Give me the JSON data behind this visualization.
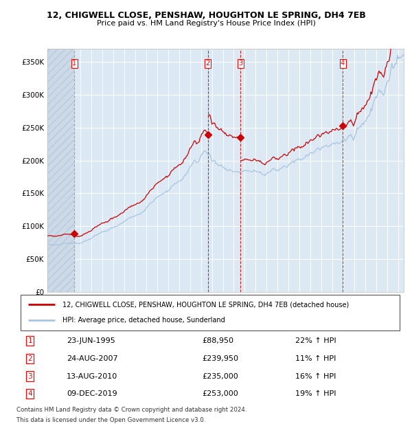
{
  "title": "12, CHIGWELL CLOSE, PENSHAW, HOUGHTON LE SPRING, DH4 7EB",
  "subtitle": "Price paid vs. HM Land Registry's House Price Index (HPI)",
  "legend_line1": "12, CHIGWELL CLOSE, PENSHAW, HOUGHTON LE SPRING, DH4 7EB (detached house)",
  "legend_line2": "HPI: Average price, detached house, Sunderland",
  "footer1": "Contains HM Land Registry data © Crown copyright and database right 2024.",
  "footer2": "This data is licensed under the Open Government Licence v3.0.",
  "transactions": [
    {
      "num": 1,
      "date": "23-JUN-1995",
      "price": 88950,
      "pct": "22%",
      "dir": "↑"
    },
    {
      "num": 2,
      "date": "24-AUG-2007",
      "price": 239950,
      "pct": "11%",
      "dir": "↑"
    },
    {
      "num": 3,
      "date": "13-AUG-2010",
      "price": 235000,
      "pct": "16%",
      "dir": "↑"
    },
    {
      "num": 4,
      "date": "09-DEC-2019",
      "price": 253000,
      "pct": "19%",
      "dir": "↑"
    }
  ],
  "transaction_years": [
    1995.47,
    2007.64,
    2010.62,
    2019.93
  ],
  "transaction_prices": [
    88950,
    239950,
    235000,
    253000
  ],
  "hpi_color": "#a8c4e0",
  "price_color": "#cc0000",
  "background_color": "#dce9f5",
  "ylim": [
    0,
    370000
  ],
  "xlim_start": 1993.0,
  "xlim_end": 2025.5,
  "yticks": [
    0,
    50000,
    100000,
    150000,
    200000,
    250000,
    300000,
    350000
  ],
  "ytick_labels": [
    "£0",
    "£50K",
    "£100K",
    "£150K",
    "£200K",
    "£250K",
    "£300K",
    "£350K"
  ]
}
